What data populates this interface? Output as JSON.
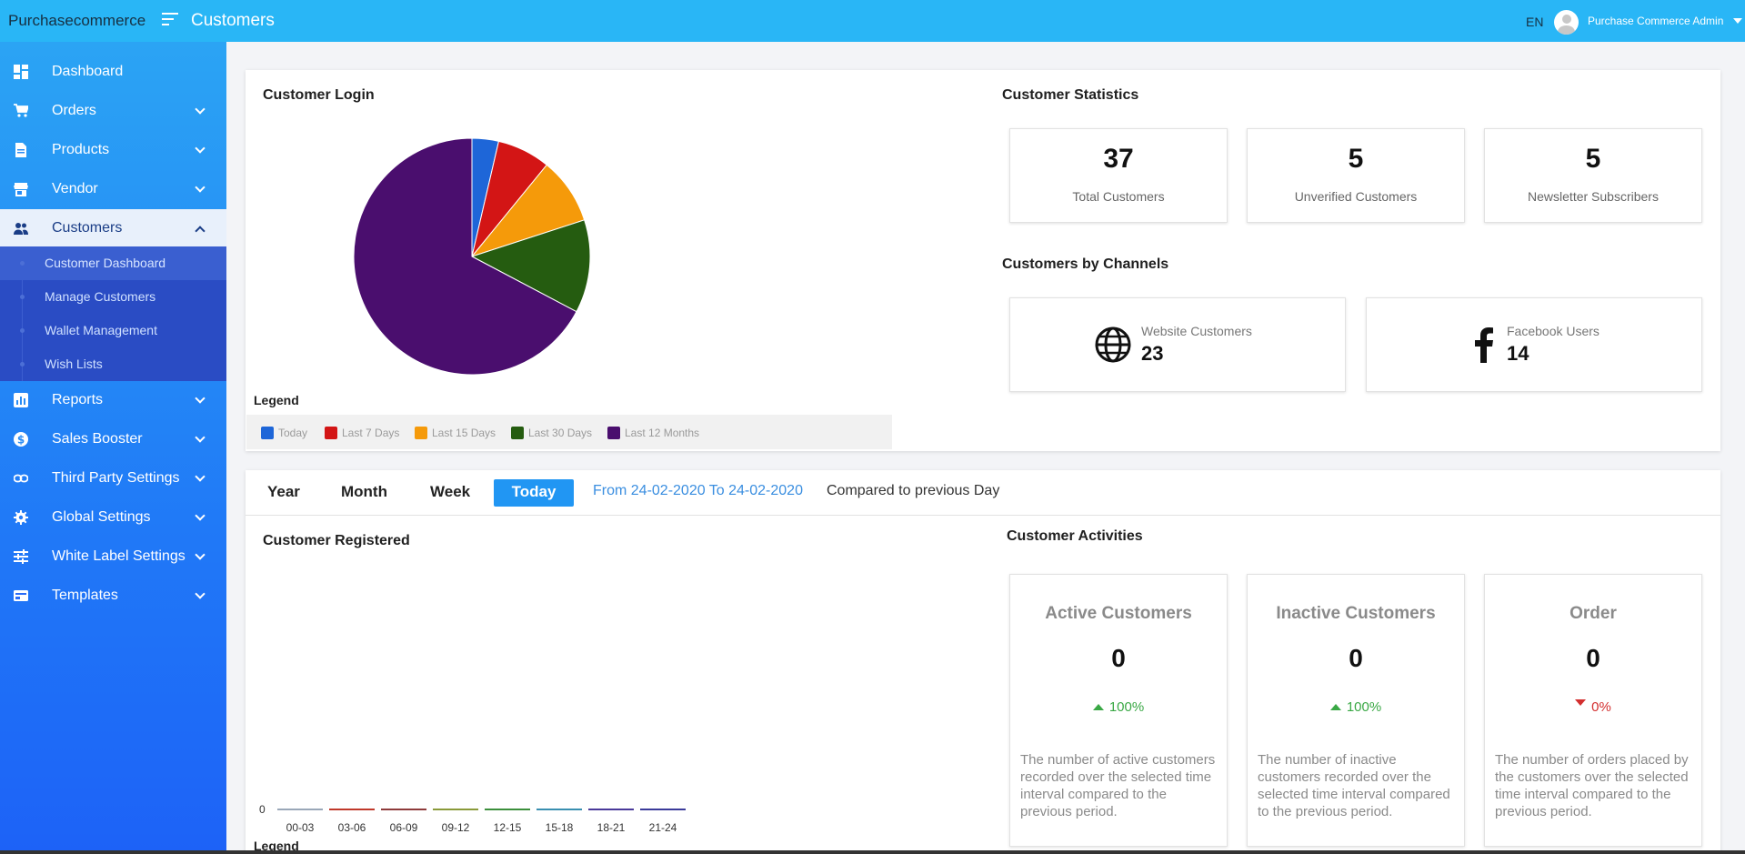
{
  "header": {
    "brand": "Purchasecommerce",
    "page_title": "Customers",
    "language": "EN",
    "user_name": "Purchase Commerce Admin"
  },
  "sidebar": {
    "items": [
      {
        "label": "Dashboard",
        "icon": "dashboard-icon",
        "has_chevron": false
      },
      {
        "label": "Orders",
        "icon": "cart-icon",
        "has_chevron": true
      },
      {
        "label": "Products",
        "icon": "document-icon",
        "has_chevron": true
      },
      {
        "label": "Vendor",
        "icon": "store-icon",
        "has_chevron": true
      },
      {
        "label": "Customers",
        "icon": "people-icon",
        "has_chevron": true,
        "expanded": true
      },
      {
        "label": "Reports",
        "icon": "bar-chart-icon",
        "has_chevron": true
      },
      {
        "label": "Sales Booster",
        "icon": "dollar-icon",
        "has_chevron": true
      },
      {
        "label": "Third Party Settings",
        "icon": "link-icon",
        "has_chevron": true
      },
      {
        "label": "Global Settings",
        "icon": "gear-icon",
        "has_chevron": true
      },
      {
        "label": "White Label Settings",
        "icon": "sliders-icon",
        "has_chevron": true
      },
      {
        "label": "Templates",
        "icon": "template-icon",
        "has_chevron": true
      }
    ],
    "customers_submenu": [
      {
        "label": "Customer Dashboard",
        "current": true
      },
      {
        "label": "Manage Customers"
      },
      {
        "label": "Wallet Management"
      },
      {
        "label": "Wish Lists"
      }
    ]
  },
  "customer_login": {
    "title": "Customer Login",
    "legend_title": "Legend"
  },
  "customer_statistics": {
    "title": "Customer Statistics",
    "stats": [
      {
        "value": "37",
        "label": "Total Customers"
      },
      {
        "value": "5",
        "label": "Unverified Customers"
      },
      {
        "value": "5",
        "label": "Newsletter Subscribers"
      }
    ]
  },
  "channels": {
    "title": "Customers by Channels",
    "items": [
      {
        "label": "Website Customers",
        "value": "23",
        "icon": "globe-icon"
      },
      {
        "label": "Facebook Users",
        "value": "14",
        "icon": "facebook-icon"
      }
    ]
  },
  "range": {
    "tabs": [
      "Year",
      "Month",
      "Week",
      "Today"
    ],
    "selected": "Today",
    "dates": "From 24-02-2020 To 24-02-2020",
    "compare": "Compared to previous Day"
  },
  "customer_registered": {
    "title": "Customer Registered",
    "legend_title": "Legend",
    "zero_label": "0"
  },
  "activities": {
    "title": "Customer Activities",
    "boxes": [
      {
        "title": "Active Customers",
        "value": "0",
        "change": "100%",
        "direction": "up",
        "description": "The number of active customers recorded over the selected time interval compared to the previous period."
      },
      {
        "title": "Inactive Customers",
        "value": "0",
        "change": "100%",
        "direction": "up",
        "description": "The number of inactive customers recorded over the selected time interval compared to the previous period."
      },
      {
        "title": "Order",
        "value": "0",
        "change": "0%",
        "direction": "down",
        "description": "The number of orders placed by the customers over the selected time interval compared to the previous period."
      }
    ]
  },
  "chart_data": [
    {
      "type": "pie",
      "title": "Customer Login",
      "legend_title": "Legend",
      "legend_position": "bottom",
      "series": [
        {
          "name": "Today",
          "value": 2,
          "color": "#1e66d8"
        },
        {
          "name": "Last 7 Days",
          "value": 4,
          "color": "#d31515"
        },
        {
          "name": "Last 15 Days",
          "value": 5,
          "color": "#f59a0a"
        },
        {
          "name": "Last 30 Days",
          "value": 7,
          "color": "#255c10"
        },
        {
          "name": "Last 12 Months",
          "value": 37,
          "color": "#4a0e6e"
        }
      ]
    },
    {
      "type": "bar",
      "title": "Customer Registered",
      "categories": [
        "00-03",
        "03-06",
        "06-09",
        "09-12",
        "12-15",
        "15-18",
        "18-21",
        "21-24"
      ],
      "values": [
        0,
        0,
        0,
        0,
        0,
        0,
        0,
        0
      ],
      "colors": [
        "#9aa7b8",
        "#c0392b",
        "#8e3b3b",
        "#8a9a3a",
        "#3c8f3c",
        "#3a8fb0",
        "#4a3a9a",
        "#3b3b9a"
      ],
      "ylim": [
        0,
        1
      ],
      "ytick_labels": [
        "0"
      ]
    }
  ]
}
